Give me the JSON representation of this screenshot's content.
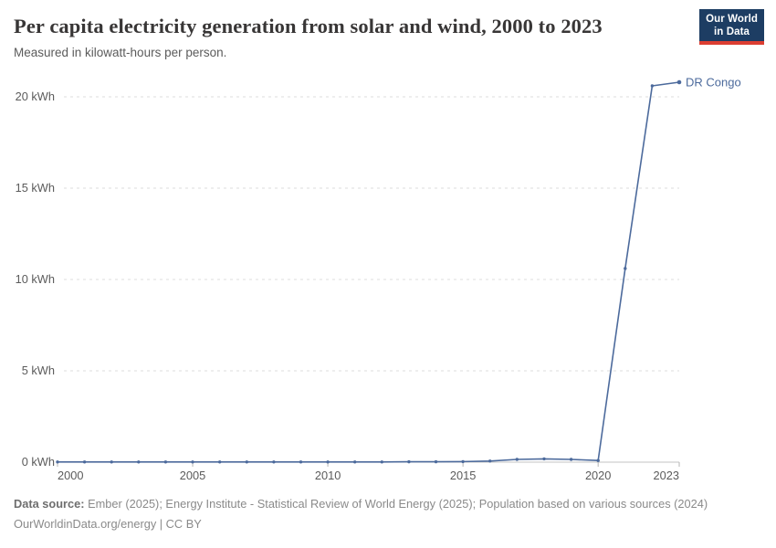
{
  "header": {
    "title": "Per capita electricity generation from solar and wind, 2000 to 2023",
    "subtitle": "Measured in kilowatt-hours per person."
  },
  "logo": {
    "line1": "Our World",
    "line2": "in Data"
  },
  "chart_data": {
    "type": "line",
    "title": "Per capita electricity generation from solar and wind, 2000 to 2023",
    "unit": "kWh",
    "xlim": [
      2000,
      2023
    ],
    "ylim": [
      0,
      20
    ],
    "grid": "dashed-horizontal",
    "legend_position": "end-of-line-label",
    "x": [
      2000,
      2001,
      2002,
      2003,
      2004,
      2005,
      2006,
      2007,
      2008,
      2009,
      2010,
      2011,
      2012,
      2013,
      2014,
      2015,
      2016,
      2017,
      2018,
      2019,
      2020,
      2021,
      2022,
      2023
    ],
    "series": [
      {
        "name": "DR Congo",
        "color": "#4c6a9c",
        "values": [
          0.01,
          0.01,
          0.01,
          0.01,
          0.01,
          0.01,
          0.01,
          0.01,
          0.01,
          0.01,
          0.01,
          0.01,
          0.01,
          0.02,
          0.02,
          0.03,
          0.06,
          0.15,
          0.18,
          0.15,
          0.09,
          10.6,
          20.6,
          20.8
        ]
      }
    ],
    "yticks": [
      {
        "value": 0,
        "label": "0 kWh"
      },
      {
        "value": 5,
        "label": "5 kWh"
      },
      {
        "value": 10,
        "label": "10 kWh"
      },
      {
        "value": 15,
        "label": "15 kWh"
      },
      {
        "value": 20,
        "label": "20 kWh"
      }
    ],
    "xticks": [
      {
        "year": 2000,
        "label": "2000"
      },
      {
        "year": 2005,
        "label": "2005"
      },
      {
        "year": 2010,
        "label": "2010"
      },
      {
        "year": 2015,
        "label": "2015"
      },
      {
        "year": 2020,
        "label": "2020"
      },
      {
        "year": 2023,
        "label": "2023"
      }
    ]
  },
  "colors": {
    "line": "#4c6a9c",
    "grid": "#dcdcdc",
    "axis": "#c3c3c3",
    "tick": "#b5b5b5",
    "accent_navy": "#1d3d63",
    "accent_red": "#dc3e32"
  },
  "footer": {
    "datasource_label": "Data source:",
    "datasource_text": " Ember (2025); Energy Institute - Statistical Review of World Energy (2025); Population based on various sources (2024)",
    "license_line": "OurWorldinData.org/energy | CC BY"
  }
}
